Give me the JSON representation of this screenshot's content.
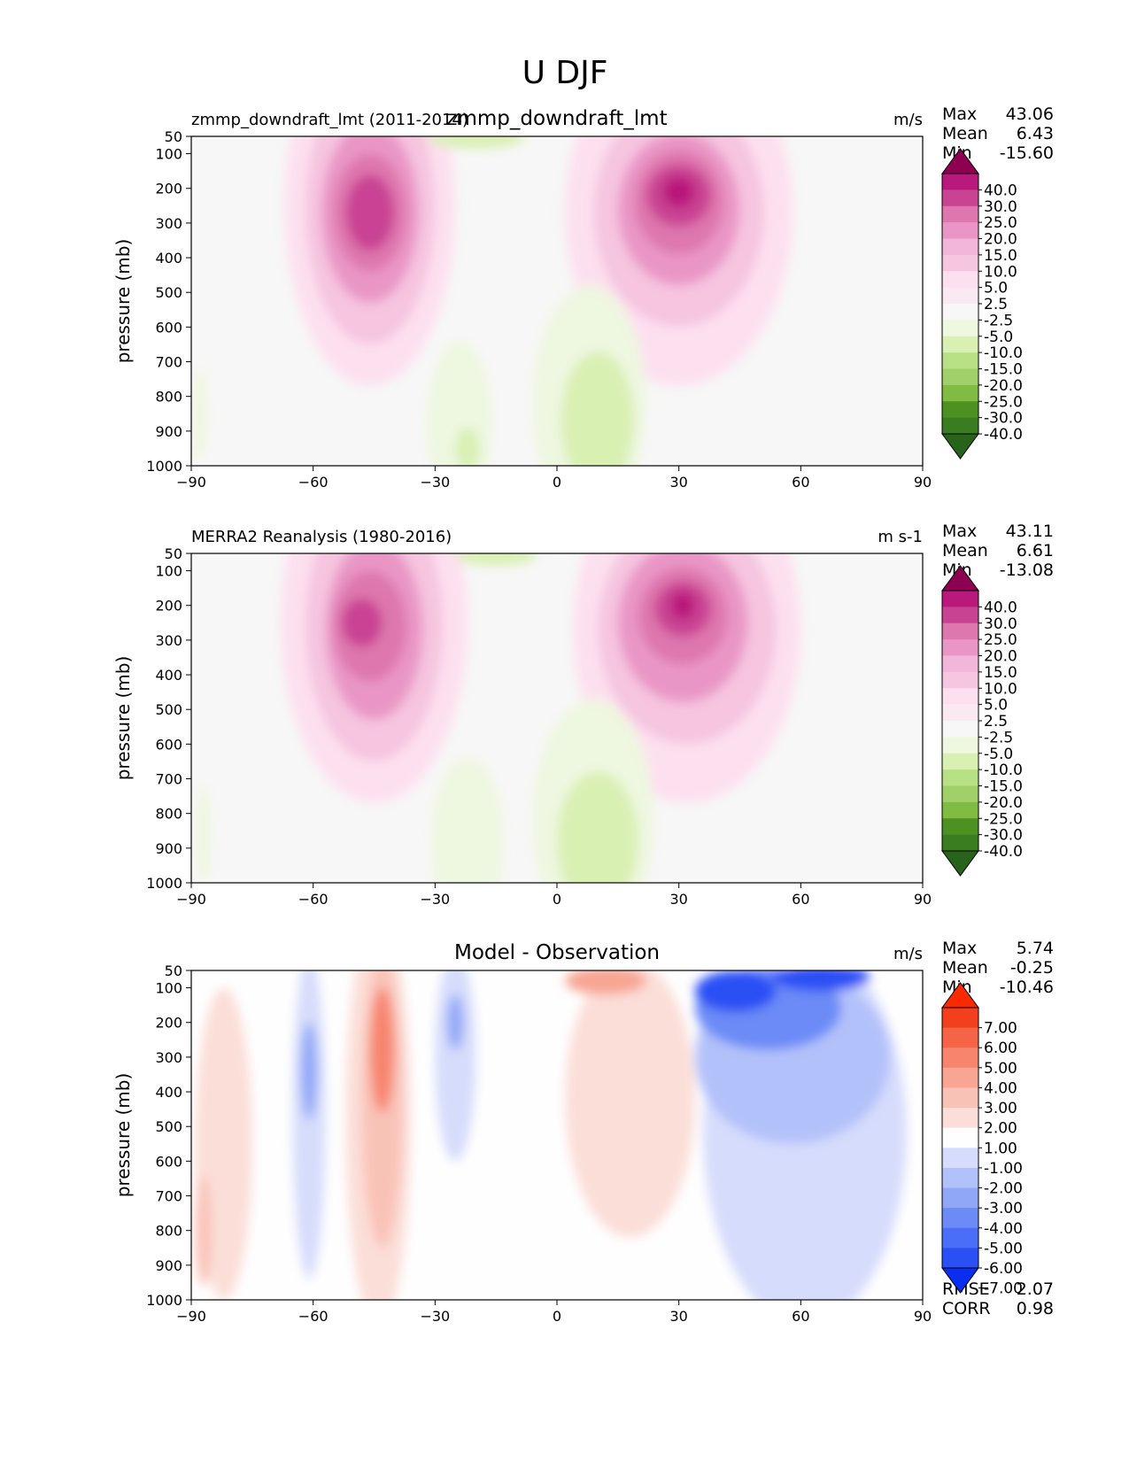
{
  "figure": {
    "title": "U DJF"
  },
  "chart_data": [
    {
      "type": "contour",
      "title": "zmmp_downdraft_lmt",
      "left_label": "zmmp_downdraft_lmt (2011-2014)",
      "units": "m/s",
      "xlabel": "",
      "ylabel": "pressure (mb)",
      "xlim": [
        -90,
        90
      ],
      "ylim": [
        1000,
        50
      ],
      "xticks": [
        "−90",
        "−60",
        "−30",
        "0",
        "30",
        "60",
        "90"
      ],
      "xtick_values": [
        -90,
        -60,
        -30,
        0,
        30,
        60,
        90
      ],
      "yticks": [
        "50",
        "100",
        "200",
        "300",
        "400",
        "500",
        "600",
        "700",
        "800",
        "900",
        "1000"
      ],
      "ytick_values": [
        50,
        100,
        200,
        300,
        400,
        500,
        600,
        700,
        800,
        900,
        1000
      ],
      "stats": {
        "labels": [
          "Max",
          "Mean",
          "Min"
        ],
        "values": [
          "43.06",
          "6.43",
          "-15.60"
        ]
      },
      "levels": [
        "-40.0",
        "-30.0",
        "-25.0",
        "-20.0",
        "-15.0",
        "-10.0",
        "-5.0",
        "-2.5",
        "2.5",
        "5.0",
        "10.0",
        "15.0",
        "20.0",
        "25.0",
        "30.0",
        "40.0"
      ],
      "colors": [
        "#276419",
        "#3a7d20",
        "#4d9221",
        "#7fbc41",
        "#a1d06a",
        "#b8e186",
        "#d9f0b3",
        "#eef7e0",
        "#f7f7f7",
        "#fbe9f2",
        "#fde0ef",
        "#f6c5e0",
        "#f1b6da",
        "#e996c6",
        "#de77ae",
        "#c94393",
        "#b9197c",
        "#8e0152"
      ],
      "blobs": [
        {
          "lat": -46,
          "p": 250,
          "rx": 21,
          "ry": 520,
          "v": 8
        },
        {
          "lat": -46,
          "p": 260,
          "rx": 16,
          "ry": 390,
          "v": 15
        },
        {
          "lat": -46,
          "p": 270,
          "rx": 12,
          "ry": 260,
          "v": 22
        },
        {
          "lat": -46,
          "p": 270,
          "rx": 9,
          "ry": 170,
          "v": 27
        },
        {
          "lat": -46,
          "p": 270,
          "rx": 6,
          "ry": 110,
          "v": 35
        },
        {
          "lat": 30,
          "p": 270,
          "rx": 28,
          "ry": 500,
          "v": 8
        },
        {
          "lat": 30,
          "p": 270,
          "rx": 21,
          "ry": 330,
          "v": 15
        },
        {
          "lat": 30,
          "p": 260,
          "rx": 15,
          "ry": 220,
          "v": 22
        },
        {
          "lat": 30,
          "p": 240,
          "rx": 11,
          "ry": 150,
          "v": 27
        },
        {
          "lat": 30,
          "p": 220,
          "rx": 8,
          "ry": 90,
          "v": 35
        },
        {
          "lat": 30,
          "p": 210,
          "rx": 4,
          "ry": 45,
          "v": 42
        },
        {
          "lat": 8,
          "p": 820,
          "rx": 14,
          "ry": 340,
          "v": -3
        },
        {
          "lat": 10,
          "p": 870,
          "rx": 9,
          "ry": 200,
          "v": -6
        },
        {
          "lat": -24,
          "p": 880,
          "rx": 8,
          "ry": 240,
          "v": -4
        },
        {
          "lat": -22,
          "p": 950,
          "rx": 3,
          "ry": 60,
          "v": -7
        },
        {
          "lat": -20,
          "p": 55,
          "rx": 12,
          "ry": 30,
          "v": -6
        },
        {
          "lat": -88,
          "p": 850,
          "rx": 2,
          "ry": 130,
          "v": -3
        }
      ]
    },
    {
      "type": "contour",
      "title": "",
      "left_label": "MERRA2 Reanalysis (1980-2016)",
      "units": "m s-1",
      "xlabel": "",
      "ylabel": "pressure (mb)",
      "xlim": [
        -90,
        90
      ],
      "ylim": [
        1000,
        50
      ],
      "xticks": [
        "−90",
        "−60",
        "−30",
        "0",
        "30",
        "60",
        "90"
      ],
      "xtick_values": [
        -90,
        -60,
        -30,
        0,
        30,
        60,
        90
      ],
      "yticks": [
        "50",
        "100",
        "200",
        "300",
        "400",
        "500",
        "600",
        "700",
        "800",
        "900",
        "1000"
      ],
      "ytick_values": [
        50,
        100,
        200,
        300,
        400,
        500,
        600,
        700,
        800,
        900,
        1000
      ],
      "stats": {
        "labels": [
          "Max",
          "Mean",
          "Min"
        ],
        "values": [
          "43.11",
          "6.61",
          "-13.08"
        ]
      },
      "levels": [
        "-40.0",
        "-30.0",
        "-25.0",
        "-20.0",
        "-15.0",
        "-10.0",
        "-5.0",
        "-2.5",
        "2.5",
        "5.0",
        "10.0",
        "15.0",
        "20.0",
        "25.0",
        "30.0",
        "40.0"
      ],
      "colors": [
        "#276419",
        "#3a7d20",
        "#4d9221",
        "#7fbc41",
        "#a1d06a",
        "#b8e186",
        "#d9f0b3",
        "#eef7e0",
        "#f7f7f7",
        "#fbe9f2",
        "#fde0ef",
        "#f6c5e0",
        "#f1b6da",
        "#e996c6",
        "#de77ae",
        "#c94393",
        "#b9197c",
        "#8e0152"
      ],
      "blobs": [
        {
          "lat": -45,
          "p": 250,
          "rx": 23,
          "ry": 520,
          "v": 8
        },
        {
          "lat": -45,
          "p": 260,
          "rx": 17,
          "ry": 390,
          "v": 15
        },
        {
          "lat": -45,
          "p": 270,
          "rx": 12,
          "ry": 260,
          "v": 22
        },
        {
          "lat": -46,
          "p": 260,
          "rx": 9,
          "ry": 160,
          "v": 27
        },
        {
          "lat": -48,
          "p": 250,
          "rx": 5,
          "ry": 70,
          "v": 35
        },
        {
          "lat": 32,
          "p": 270,
          "rx": 28,
          "ry": 500,
          "v": 8
        },
        {
          "lat": 32,
          "p": 270,
          "rx": 22,
          "ry": 330,
          "v": 15
        },
        {
          "lat": 31,
          "p": 250,
          "rx": 16,
          "ry": 230,
          "v": 22
        },
        {
          "lat": 31,
          "p": 230,
          "rx": 11,
          "ry": 140,
          "v": 27
        },
        {
          "lat": 31,
          "p": 210,
          "rx": 7,
          "ry": 80,
          "v": 35
        },
        {
          "lat": 31,
          "p": 200,
          "rx": 3,
          "ry": 40,
          "v": 42
        },
        {
          "lat": 9,
          "p": 820,
          "rx": 15,
          "ry": 350,
          "v": -3
        },
        {
          "lat": 10,
          "p": 880,
          "rx": 10,
          "ry": 200,
          "v": -6
        },
        {
          "lat": -22,
          "p": 880,
          "rx": 9,
          "ry": 240,
          "v": -4
        },
        {
          "lat": -15,
          "p": 55,
          "rx": 10,
          "ry": 30,
          "v": -6
        },
        {
          "lat": -87,
          "p": 860,
          "rx": 2,
          "ry": 140,
          "v": -3
        }
      ]
    },
    {
      "type": "contour",
      "title": "Model - Observation",
      "left_label": "",
      "units": "m/s",
      "xlabel": "",
      "ylabel": "pressure (mb)",
      "xlim": [
        -90,
        90
      ],
      "ylim": [
        1000,
        50
      ],
      "xticks": [
        "−90",
        "−60",
        "−30",
        "0",
        "30",
        "60",
        "90"
      ],
      "xtick_values": [
        -90,
        -60,
        -30,
        0,
        30,
        60,
        90
      ],
      "yticks": [
        "50",
        "100",
        "200",
        "300",
        "400",
        "500",
        "600",
        "700",
        "800",
        "900",
        "1000"
      ],
      "ytick_values": [
        50,
        100,
        200,
        300,
        400,
        500,
        600,
        700,
        800,
        900,
        1000
      ],
      "stats": {
        "labels": [
          "Max",
          "Mean",
          "Min"
        ],
        "values": [
          "5.74",
          "-0.25",
          "-10.46"
        ]
      },
      "extra_stats": {
        "labels": [
          "RMSE",
          "CORR"
        ],
        "values": [
          "2.07",
          "0.98"
        ]
      },
      "levels": [
        "-7.00",
        "-6.00",
        "-5.00",
        "-4.00",
        "-3.00",
        "-2.00",
        "-1.00",
        "1.00",
        "2.00",
        "3.00",
        "4.00",
        "5.00",
        "6.00",
        "7.00"
      ],
      "colors": [
        "#0a2ef0",
        "#2a50f5",
        "#4a6ef7",
        "#6c8bf7",
        "#90a7f8",
        "#b3c1fa",
        "#d6dcfb",
        "#fefefe",
        "#fbded8",
        "#f9c2b7",
        "#f8a593",
        "#f7856e",
        "#f66447",
        "#f33f1c",
        "#f92a00"
      ],
      "blobs": [
        {
          "lat": -44,
          "p": 480,
          "rx": 8,
          "ry": 600,
          "v": 1.5
        },
        {
          "lat": -43,
          "p": 430,
          "rx": 5,
          "ry": 420,
          "v": 2.5
        },
        {
          "lat": -43,
          "p": 280,
          "rx": 3,
          "ry": 180,
          "v": 4.5
        },
        {
          "lat": -82,
          "p": 550,
          "rx": 7,
          "ry": 450,
          "v": 1.5
        },
        {
          "lat": -87,
          "p": 800,
          "rx": 2,
          "ry": 160,
          "v": 2.5
        },
        {
          "lat": -61,
          "p": 470,
          "rx": 4,
          "ry": 470,
          "v": -1.5
        },
        {
          "lat": -61,
          "p": 340,
          "rx": 2,
          "ry": 140,
          "v": -3.5
        },
        {
          "lat": -25,
          "p": 300,
          "rx": 5,
          "ry": 300,
          "v": -1.5
        },
        {
          "lat": -25,
          "p": 200,
          "rx": 2,
          "ry": 80,
          "v": -3.5
        },
        {
          "lat": 18,
          "p": 420,
          "rx": 16,
          "ry": 400,
          "v": 1.5
        },
        {
          "lat": 12,
          "p": 80,
          "rx": 10,
          "ry": 40,
          "v": 3.5
        },
        {
          "lat": 61,
          "p": 520,
          "rx": 25,
          "ry": 550,
          "v": -1.5
        },
        {
          "lat": 58,
          "p": 300,
          "rx": 24,
          "ry": 250,
          "v": -2.5
        },
        {
          "lat": 52,
          "p": 160,
          "rx": 18,
          "ry": 120,
          "v": -4.5
        },
        {
          "lat": 44,
          "p": 110,
          "rx": 10,
          "ry": 60,
          "v": -6.5
        },
        {
          "lat": 65,
          "p": 70,
          "rx": 12,
          "ry": 40,
          "v": -6.5
        }
      ]
    }
  ]
}
